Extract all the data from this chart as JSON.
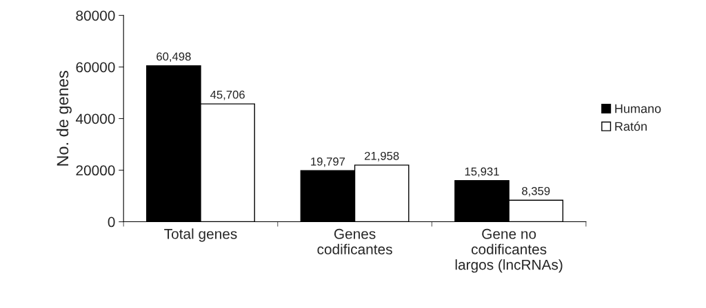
{
  "chart_data": {
    "type": "bar",
    "ylabel": "No. de genes",
    "categories": [
      "Total genes",
      "Genes\ncodificantes",
      "Gene no\ncodificantes\nlargos (lncRNAs)"
    ],
    "series": [
      {
        "name": "Humano",
        "color": "#000000",
        "values": [
          60498,
          19797,
          15931
        ],
        "value_labels": [
          "60,498",
          "19,797",
          "15,931"
        ]
      },
      {
        "name": "Ratón",
        "color": "#ffffff",
        "values": [
          45706,
          21958,
          8359
        ],
        "value_labels": [
          "45,706",
          "21,958",
          "8,359"
        ]
      }
    ],
    "ylim": [
      0,
      80000
    ],
    "yticks": [
      0,
      20000,
      40000,
      60000,
      80000
    ],
    "grid": false,
    "legend": "right"
  }
}
